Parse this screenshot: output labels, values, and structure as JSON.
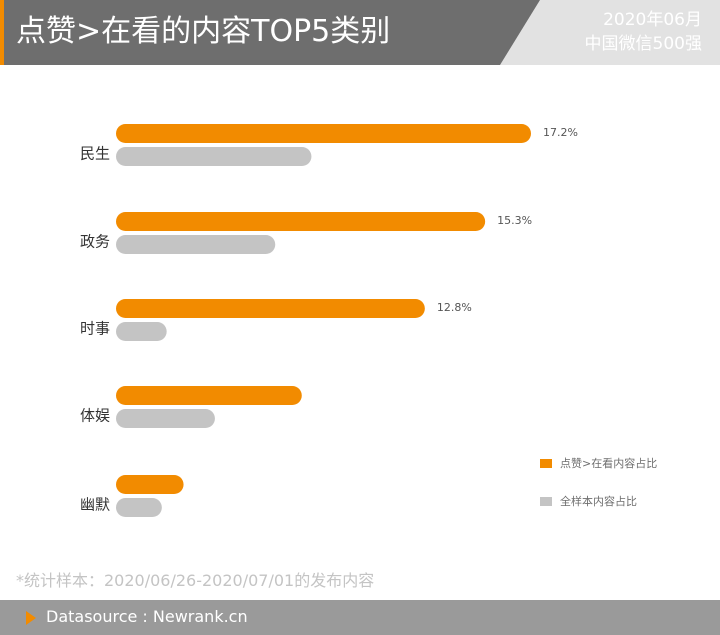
{
  "header": {
    "title": "点赞>在看的内容TOP5类别",
    "date": "2020年06月",
    "scope": "中国微信500强"
  },
  "note": "*统计样本：2020/06/26-2020/07/01的发布内容",
  "footer": {
    "source": "Datasource : Newrank.cn"
  },
  "colors": {
    "accent": "#f28b00",
    "secondary": "#c4c4c4",
    "header_bg": "#6e6e6e"
  },
  "icons": {
    "footer_marker": "play-triangle-icon"
  },
  "chart_data": {
    "type": "bar",
    "orientation": "horizontal",
    "categories": [
      "民生",
      "政务",
      "时事",
      "体娱",
      "幽默"
    ],
    "series": [
      {
        "name": "点赞>在看内容占比",
        "color": "#f28b00",
        "values": [
          17.2,
          15.3,
          12.8,
          7.7,
          2.8
        ],
        "labels": [
          "17.2%",
          "15.3%",
          "12.8%",
          "",
          ""
        ]
      },
      {
        "name": "全样本内容占比",
        "color": "#c4c4c4",
        "values": [
          8.1,
          6.6,
          2.1,
          4.1,
          1.9
        ],
        "labels": [
          "",
          "",
          "",
          "",
          ""
        ]
      }
    ],
    "xlim": [
      0,
      20
    ],
    "legend_position": "right",
    "grid": false
  }
}
